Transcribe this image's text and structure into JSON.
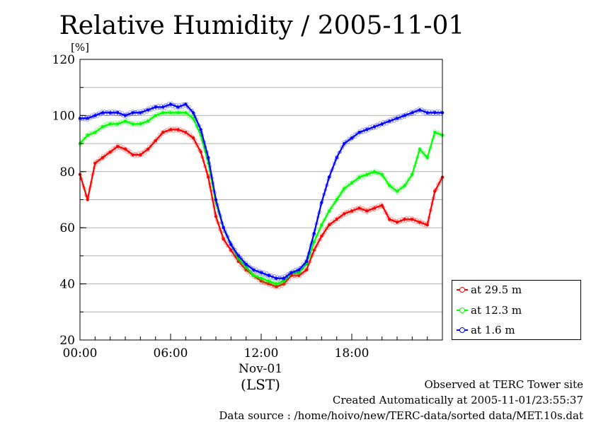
{
  "chart_data": {
    "type": "line",
    "title": "Relative Humidity / 2005-11-01",
    "ylabel": "[%]",
    "xlabel": "(LST)",
    "date_label": "Nov-01",
    "ylim": [
      20,
      120
    ],
    "xlim": [
      0,
      24
    ],
    "yticks": [
      20,
      40,
      60,
      80,
      100,
      120
    ],
    "xticks": [
      0,
      6,
      12,
      18
    ],
    "xtick_labels": [
      "00:00",
      "06:00",
      "12:00",
      "18:00"
    ],
    "grid": true,
    "legend_placement": "bottom-right",
    "x": [
      0,
      0.5,
      1,
      1.5,
      2,
      2.5,
      3,
      3.5,
      4,
      4.5,
      5,
      5.5,
      6,
      6.5,
      7,
      7.5,
      8,
      8.5,
      9,
      9.5,
      10,
      10.5,
      11,
      11.5,
      12,
      12.5,
      13,
      13.5,
      14,
      14.5,
      15,
      15.5,
      16,
      16.5,
      17,
      17.5,
      18,
      18.5,
      19,
      19.5,
      20,
      20.5,
      21,
      21.5,
      22,
      22.5,
      23,
      23.5,
      24
    ],
    "series": [
      {
        "name": "at 29.5 m",
        "color": "#ff0000",
        "values": [
          79,
          70,
          83,
          85,
          87,
          89,
          88,
          86,
          86,
          88,
          91,
          94,
          95,
          95,
          94,
          92,
          87,
          78,
          64,
          56,
          52,
          48,
          45,
          43,
          41,
          40,
          39,
          40,
          43,
          43,
          45,
          52,
          57,
          61,
          63,
          65,
          66,
          67,
          66,
          67,
          68,
          63,
          62,
          63,
          63,
          62,
          61,
          73,
          78
        ]
      },
      {
        "name": "at 12.3 m",
        "color": "#00ff00",
        "values": [
          90,
          93,
          94,
          96,
          97,
          97,
          98,
          97,
          97,
          98,
          100,
          101,
          101,
          101,
          101,
          99,
          93,
          83,
          69,
          60,
          54,
          49,
          46,
          43,
          42,
          41,
          40,
          41,
          44,
          44,
          47,
          55,
          61,
          66,
          70,
          74,
          76,
          78,
          79,
          80,
          79,
          75,
          73,
          75,
          79,
          88,
          85,
          94,
          93
        ]
      },
      {
        "name": "at 1.6 m",
        "color": "#0000ff",
        "values": [
          99,
          99,
          100,
          101,
          101,
          101,
          100,
          101,
          101,
          102,
          103,
          103,
          104,
          103,
          104,
          101,
          95,
          85,
          70,
          60,
          54,
          50,
          47,
          45,
          44,
          43,
          42,
          42,
          44,
          45,
          48,
          58,
          69,
          78,
          85,
          90,
          92,
          94,
          95,
          96,
          97,
          98,
          99,
          100,
          101,
          102,
          101,
          101,
          101
        ]
      }
    ]
  },
  "footer": {
    "line1": "Observed at TERC Tower site",
    "line2": "Created Automatically at 2005-11-01/23:55:37",
    "line3": "Data source : /home/hoivo/new/TERC-data/sorted  data/MET.10s.dat"
  }
}
